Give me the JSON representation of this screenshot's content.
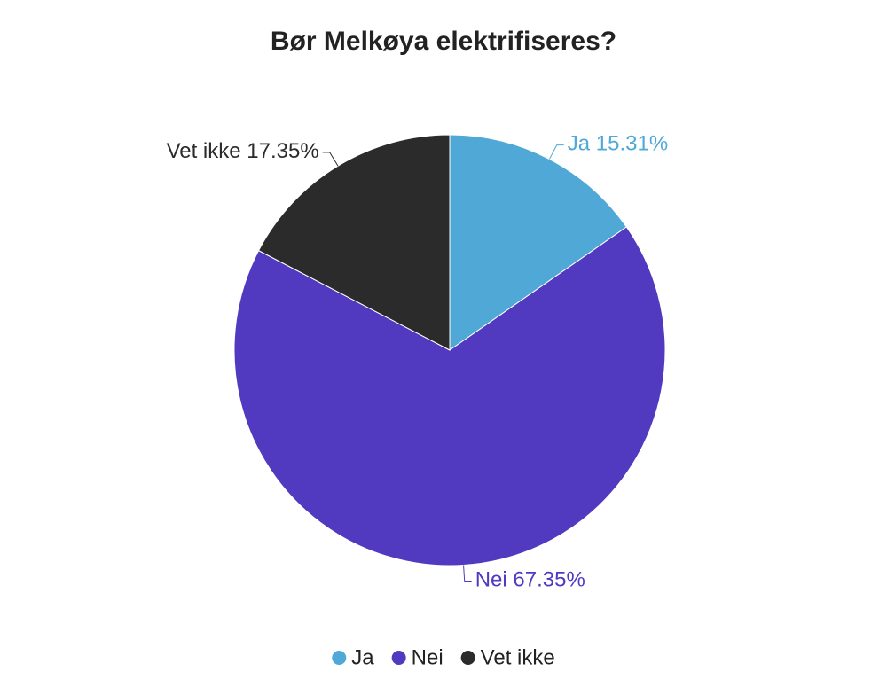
{
  "chart_data": {
    "type": "pie",
    "title": "Bør Melkøya elektrifiseres?",
    "categories": [
      "Ja",
      "Nei",
      "Vet ikke"
    ],
    "values": [
      15.31,
      67.35,
      17.35
    ],
    "value_labels": [
      "15.31%",
      "67.35%",
      "17.35%"
    ],
    "colors": [
      "#4fa8d6",
      "#5139c0",
      "#2b2b2b"
    ],
    "legend": "bottom"
  }
}
